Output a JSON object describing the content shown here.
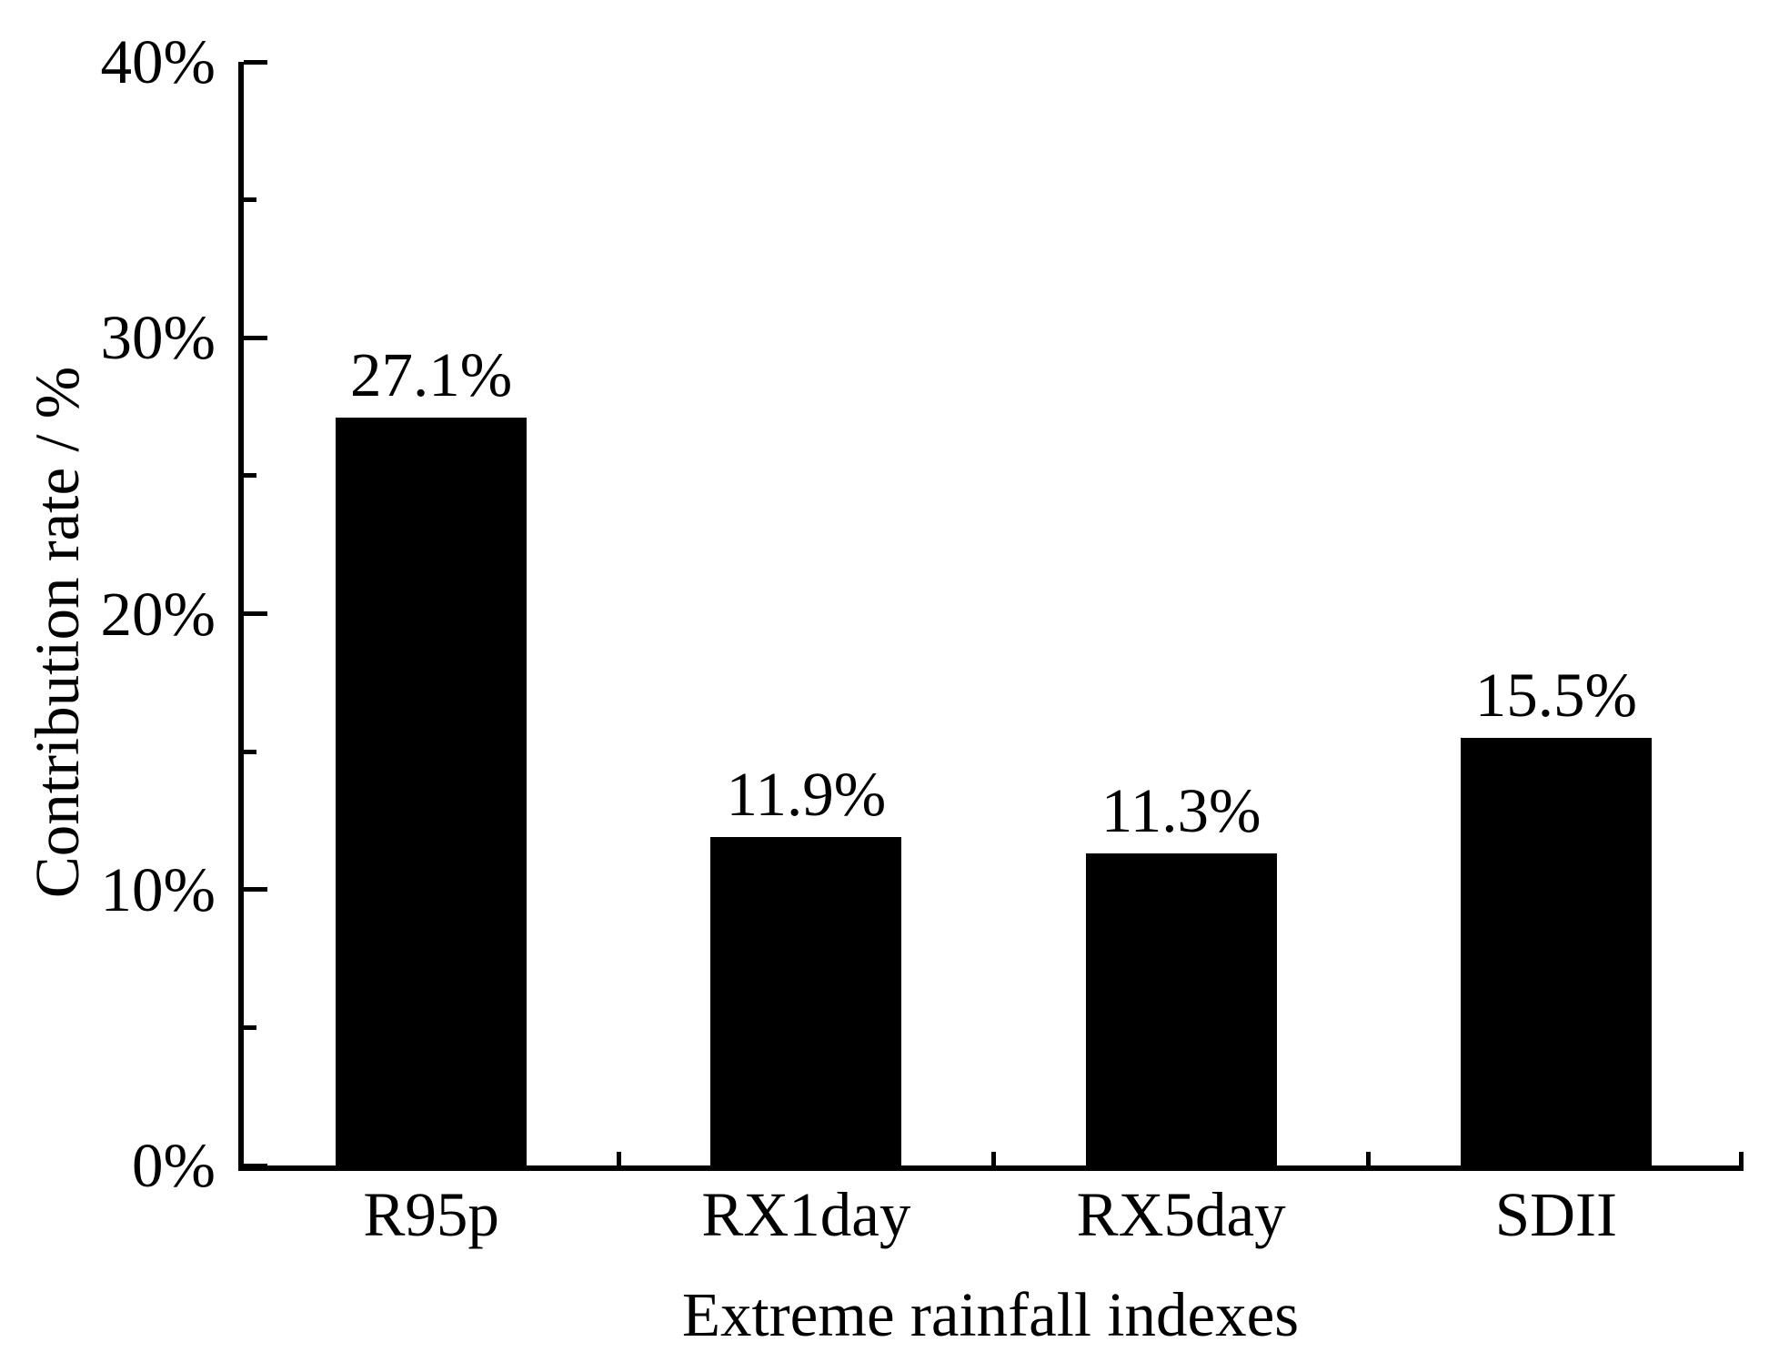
{
  "chart_data": {
    "type": "bar",
    "title": "",
    "xlabel": "Extreme rainfall indexes",
    "ylabel": "Contribution rate / %",
    "categories": [
      "R95p",
      "RX1day",
      "RX5day",
      "SDII"
    ],
    "values": [
      27.1,
      11.9,
      11.3,
      15.5
    ],
    "value_labels": [
      "27.1%",
      "11.9%",
      "11.3%",
      "15.5%"
    ],
    "series_name": "Contribution rate",
    "ylim": [
      0,
      40
    ],
    "yticks_major": [
      {
        "value": 0,
        "label": "0%"
      },
      {
        "value": 10,
        "label": "10%"
      },
      {
        "value": 20,
        "label": "20%"
      },
      {
        "value": 30,
        "label": "30%"
      },
      {
        "value": 40,
        "label": "40%"
      }
    ],
    "yticks_minor": [
      5,
      15,
      25,
      35
    ],
    "grid": false,
    "legend": "none",
    "bar_color": "#000000",
    "axis_color": "#000000",
    "text_color": "#000000",
    "background_color": "#ffffff"
  }
}
